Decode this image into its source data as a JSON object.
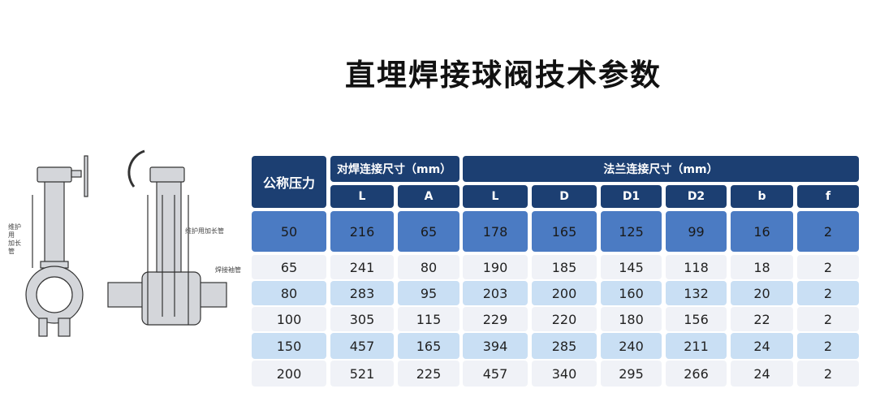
{
  "title": "直埋焊接球阀技术参数",
  "illustration": {
    "left_label": "维护用\n加长管",
    "right_label_1": "维护用加长管",
    "right_label_2": "焊接袖管"
  },
  "table": {
    "pressure_header": "公称压力",
    "group_weld": "对焊连接尺寸（mm）",
    "group_flange": "法兰连接尺寸（mm）",
    "sub_headers": [
      "L",
      "A",
      "L",
      "D",
      "D1",
      "D2",
      "b",
      "f"
    ],
    "rows": [
      [
        "50",
        "216",
        "65",
        "178",
        "165",
        "125",
        "99",
        "16",
        "2"
      ],
      [
        "65",
        "241",
        "80",
        "190",
        "185",
        "145",
        "118",
        "18",
        "2"
      ],
      [
        "80",
        "283",
        "95",
        "203",
        "200",
        "160",
        "132",
        "20",
        "2"
      ],
      [
        "100",
        "305",
        "115",
        "229",
        "220",
        "180",
        "156",
        "22",
        "2"
      ],
      [
        "150",
        "457",
        "165",
        "394",
        "285",
        "240",
        "211",
        "24",
        "2"
      ],
      [
        "200",
        "521",
        "225",
        "457",
        "340",
        "295",
        "266",
        "24",
        "2"
      ]
    ]
  },
  "colors": {
    "header": "#1c3f72",
    "highlight_row": "#4b7bc3",
    "band_row": "#c9dff4",
    "light_row": "#f0f2f7"
  }
}
